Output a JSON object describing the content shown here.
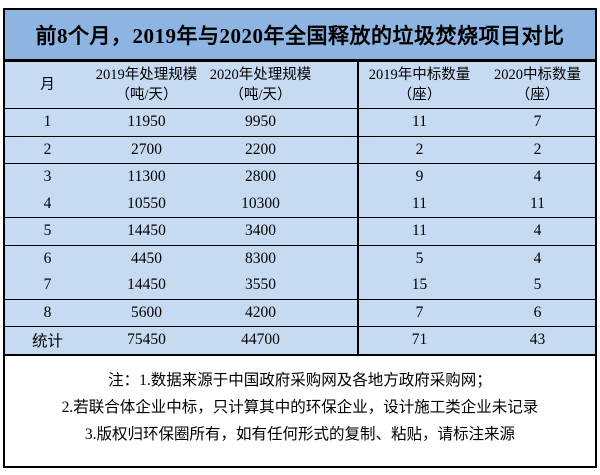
{
  "title": "前8个月，2019年与2020年全国释放的垃圾焚烧项目对比",
  "table": {
    "columns": [
      {
        "line1": "月",
        "line2": ""
      },
      {
        "line1": "2019年处理规模",
        "line2": "（吨/天）"
      },
      {
        "line1": "2020年处理规模",
        "line2": "（吨/天）"
      },
      {
        "line1": "2019年中标数量",
        "line2": "（座）"
      },
      {
        "line1": "2020中标数量",
        "line2": "（座）"
      }
    ],
    "rows": [
      [
        "1",
        "11950",
        "9950",
        "11",
        "7"
      ],
      [
        "2",
        "2700",
        "2200",
        "2",
        "2"
      ],
      [
        "3",
        "11300",
        "2800",
        "9",
        "4"
      ],
      [
        "4",
        "10550",
        "10300",
        "11",
        "11"
      ],
      [
        "5",
        "14450",
        "3400",
        "11",
        "4"
      ],
      [
        "6",
        "4450",
        "8300",
        "5",
        "4"
      ],
      [
        "7",
        "14450",
        "3550",
        "15",
        "5"
      ],
      [
        "8",
        "5600",
        "4200",
        "7",
        "6"
      ],
      [
        "统计",
        "75450",
        "44700",
        "71",
        "43"
      ]
    ],
    "total_row_label": "统计"
  },
  "notes": [
    "注：1.数据来源于中国政府采购网及各地方政府采购网；",
    "2.若联合体企业中标，只计算其中的环保企业，设计施工类企业未记录",
    "3.版权归环保圈所有，如有任何形式的复制、粘贴，请标注来源"
  ],
  "colors": {
    "title_bg": "#8EB4E2",
    "table_bg": "#C6DAF2",
    "notes_bg": "#FFFFFF",
    "border": "#000000",
    "text": "#000000"
  },
  "chart_data": {
    "type": "table",
    "title": "前8个月，2019年与2020年全国释放的垃圾焚烧项目对比",
    "categories": [
      "1",
      "2",
      "3",
      "4",
      "5",
      "6",
      "7",
      "8"
    ],
    "x_label": "月",
    "series": [
      {
        "name": "2019年处理规模（吨/天）",
        "values": [
          11950,
          2700,
          11300,
          10550,
          14450,
          4450,
          14450,
          5600
        ],
        "total": 75450
      },
      {
        "name": "2020年处理规模（吨/天）",
        "values": [
          9950,
          2200,
          2800,
          10300,
          3400,
          8300,
          3550,
          4200
        ],
        "total": 44700
      },
      {
        "name": "2019年中标数量（座）",
        "values": [
          11,
          2,
          9,
          11,
          11,
          5,
          15,
          7
        ],
        "total": 71
      },
      {
        "name": "2020中标数量（座）",
        "values": [
          7,
          2,
          4,
          11,
          4,
          4,
          5,
          6
        ],
        "total": 43
      }
    ],
    "total_row_label": "统计",
    "footnotes": [
      "注：1.数据来源于中国政府采购网及各地方政府采购网；",
      "2.若联合体企业中标，只计算其中的环保企业，设计施工类企业未记录",
      "3.版权归环保圈所有，如有任何形式的复制、粘贴，请标注来源"
    ]
  }
}
